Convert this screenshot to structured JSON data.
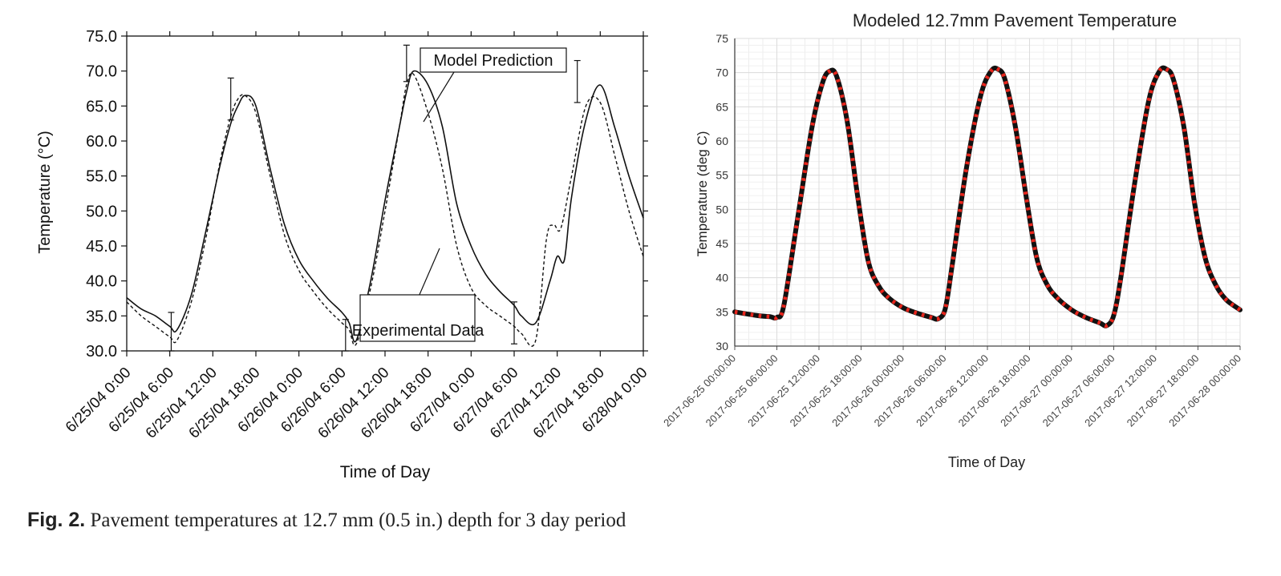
{
  "figure": {
    "caption_label": "Fig. 2.",
    "caption_text": "Pavement temperatures at 12.7 mm (0.5 in.) depth for 3 day period"
  },
  "chart_data": [
    {
      "type": "line",
      "title": "",
      "xlabel": "Time of Day",
      "ylabel": "Temperature (°C)",
      "ylim": [
        30,
        75
      ],
      "yticks": [
        "30.0",
        "35.0",
        "40.0",
        "45.0",
        "50.0",
        "55.0",
        "60.0",
        "65.0",
        "70.0",
        "75.0"
      ],
      "xlim": [
        0,
        72
      ],
      "xtick_hours": [
        0,
        6,
        12,
        18,
        24,
        30,
        36,
        42,
        48,
        54,
        60,
        66,
        72
      ],
      "xticks": [
        "6/25/04 0:00",
        "6/25/04 6:00",
        "6/25/04 12:00",
        "6/25/04 18:00",
        "6/26/04 0:00",
        "6/26/04 6:00",
        "6/26/04 12:00",
        "6/26/04 18:00",
        "6/27/04 0:00",
        "6/27/04 6:00",
        "6/27/04 12:00",
        "6/27/04 18:00",
        "6/28/04 0:00"
      ],
      "grid": false,
      "annotations": [
        "Model Prediction",
        "Experimental Data"
      ],
      "series": [
        {
          "name": "Model Prediction",
          "style": "solid",
          "color": "#111111",
          "x": [
            0,
            2,
            4,
            6,
            7,
            9,
            11,
            13,
            14.5,
            15.5,
            16.5,
            18,
            20,
            22,
            24,
            26,
            28,
            30,
            31,
            32,
            34,
            36,
            38,
            39,
            40,
            42,
            44,
            46,
            48,
            50,
            52,
            54,
            55,
            57,
            59,
            60,
            61,
            62,
            64,
            66,
            68,
            70,
            72
          ],
          "y": [
            37.6,
            36.0,
            35.0,
            33.5,
            33.0,
            38.0,
            47.0,
            56.5,
            62.5,
            65.0,
            66.5,
            65.0,
            56.0,
            48.0,
            43.0,
            40.0,
            37.5,
            35.5,
            34.0,
            31.5,
            40.0,
            51.5,
            62.0,
            67.0,
            70.0,
            68.0,
            62.0,
            51.0,
            45.0,
            41.0,
            38.5,
            36.5,
            35.0,
            34.0,
            40.0,
            43.5,
            43.0,
            52.0,
            63.0,
            68.0,
            62.0,
            55.0,
            49.0
          ]
        },
        {
          "name": "Experimental Data",
          "style": "dashed",
          "color": "#111111",
          "x": [
            0,
            2,
            4,
            6,
            7,
            9,
            11,
            13,
            14.5,
            15.5,
            16.5,
            18,
            20,
            22,
            24,
            26,
            28,
            30,
            31,
            32,
            34,
            36,
            38,
            39,
            40,
            42,
            44,
            46,
            48,
            50,
            52,
            54,
            55,
            57,
            58.5,
            59.5,
            60.5,
            62,
            64,
            66,
            68,
            70,
            72
          ],
          "y": [
            37.0,
            35.0,
            33.5,
            32.0,
            31.5,
            37.0,
            46.0,
            57.0,
            63.5,
            66.0,
            66.5,
            64.0,
            55.0,
            46.5,
            41.5,
            38.5,
            36.0,
            34.0,
            33.0,
            31.0,
            39.0,
            50.0,
            62.0,
            68.0,
            69.5,
            64.0,
            56.0,
            45.0,
            39.0,
            36.5,
            35.0,
            33.5,
            32.5,
            31.5,
            46.0,
            48.0,
            47.5,
            55.0,
            65.0,
            65.5,
            58.0,
            50.0,
            43.5
          ]
        }
      ],
      "error_bars": [
        {
          "x": 6.2,
          "y": 33.0,
          "low": 30.0,
          "high": 35.5
        },
        {
          "x": 14.5,
          "y": 66.0,
          "low": 63.0,
          "high": 69.0
        },
        {
          "x": 30.5,
          "y": 31.8,
          "low": 30.0,
          "high": 34.5
        },
        {
          "x": 39.0,
          "y": 70.3,
          "low": 68.5,
          "high": 73.7
        },
        {
          "x": 54.0,
          "y": 33.8,
          "low": 31.0,
          "high": 37.0
        },
        {
          "x": 62.8,
          "y": 68.3,
          "low": 65.5,
          "high": 71.5
        }
      ]
    },
    {
      "type": "line",
      "title": "Modeled 12.7mm Pavement Temperature",
      "xlabel": "Time of Day",
      "ylabel": "Temperature (deg C)",
      "ylim": [
        30,
        75
      ],
      "yticks": [
        "30",
        "35",
        "40",
        "45",
        "50",
        "55",
        "60",
        "65",
        "70",
        "75"
      ],
      "xlim": [
        0,
        72
      ],
      "xtick_hours": [
        0,
        6,
        12,
        18,
        24,
        30,
        36,
        42,
        48,
        54,
        60,
        66,
        72
      ],
      "xticks": [
        "2017-06-25 00:00:00",
        "2017-06-25 06:00:00",
        "2017-06-25 12:00:00",
        "2017-06-25 18:00:00",
        "2017-06-26 00:00:00",
        "2017-06-26 06:00:00",
        "2017-06-26 12:00:00",
        "2017-06-26 18:00:00",
        "2017-06-27 00:00:00",
        "2017-06-27 06:00:00",
        "2017-06-27 12:00:00",
        "2017-06-27 18:00:00",
        "2017-06-28 00:00:00"
      ],
      "grid": true,
      "series": [
        {
          "style": "thick solid with dots",
          "color": "#111111",
          "marker_color": "#e8251c",
          "x": [
            0,
            3,
            5,
            6,
            7,
            9,
            11,
            12.5,
            13.5,
            14.5,
            16,
            17.5,
            19,
            20.5,
            22,
            24,
            26,
            28,
            29,
            30,
            31,
            33,
            35,
            36.5,
            37.5,
            38.5,
            40,
            41.5,
            43,
            44.5,
            46,
            48,
            50,
            52,
            53,
            54,
            55,
            57,
            59,
            60.5,
            61.5,
            62.5,
            64,
            65.5,
            67,
            68.5,
            70,
            72
          ],
          "y": [
            35.0,
            34.5,
            34.3,
            34.2,
            36.0,
            49.0,
            62.0,
            68.5,
            70.2,
            69.5,
            63.0,
            52.0,
            42.5,
            38.8,
            37.0,
            35.6,
            34.8,
            34.2,
            34.0,
            35.5,
            42.0,
            56.0,
            66.5,
            70.2,
            70.5,
            69.0,
            62.0,
            52.0,
            43.0,
            39.0,
            37.0,
            35.3,
            34.2,
            33.4,
            33.0,
            34.5,
            40.0,
            54.0,
            66.0,
            70.2,
            70.5,
            69.0,
            62.0,
            51.0,
            43.0,
            39.0,
            36.8,
            35.3
          ]
        }
      ]
    }
  ]
}
